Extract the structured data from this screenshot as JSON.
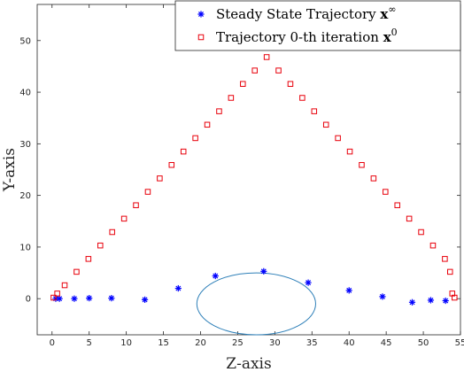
{
  "chart_data": {
    "type": "scatter",
    "xlabel": "Z-axis",
    "ylabel": "Y-axis",
    "xlim": [
      -2,
      55
    ],
    "ylim": [
      -7,
      57
    ],
    "xticks": [
      0,
      5,
      10,
      15,
      20,
      25,
      30,
      35,
      40,
      45,
      50,
      55
    ],
    "yticks": [
      0,
      10,
      20,
      30,
      40,
      50
    ],
    "grid": false,
    "legend_position": "top-right",
    "series": [
      {
        "name": "Steady State Trajectory",
        "name_math": "x",
        "name_sup": "∞",
        "marker": "asterisk",
        "color": "#0000ff",
        "x": [
          0.5,
          1.0,
          3.0,
          5.0,
          8.0,
          12.5,
          17.0,
          22.0,
          28.5,
          34.5,
          40.0,
          44.5,
          48.5,
          51.0,
          53.0
        ],
        "y": [
          0.0,
          0.0,
          0.0,
          0.1,
          0.1,
          -0.2,
          2.0,
          4.4,
          5.3,
          3.1,
          1.6,
          0.4,
          -0.7,
          -0.3,
          -0.4
        ]
      },
      {
        "name": "Trajectory 0-th iteration",
        "name_math": "x",
        "name_sup": "0",
        "marker": "square",
        "color": "#e8000b",
        "x": [
          0.2,
          0.7,
          1.7,
          3.3,
          4.9,
          6.5,
          8.1,
          9.7,
          11.3,
          12.9,
          14.5,
          16.1,
          17.7,
          19.3,
          20.9,
          22.5,
          24.1,
          25.7,
          27.3,
          28.9,
          30.5,
          32.1,
          33.7,
          35.3,
          36.9,
          38.5,
          40.1,
          41.7,
          43.3,
          44.9,
          46.5,
          48.1,
          49.7,
          51.3,
          52.9,
          53.6,
          53.9,
          54.2
        ],
        "y": [
          0.2,
          1.0,
          2.6,
          5.2,
          7.7,
          10.3,
          12.9,
          15.5,
          18.1,
          20.7,
          23.3,
          25.9,
          28.5,
          31.1,
          33.7,
          36.3,
          38.9,
          41.6,
          44.2,
          46.8,
          44.2,
          41.6,
          38.9,
          36.3,
          33.7,
          31.1,
          28.5,
          25.9,
          23.3,
          20.7,
          18.1,
          15.5,
          12.9,
          10.3,
          7.7,
          5.2,
          1.0,
          0.2
        ]
      }
    ],
    "annotations": [
      {
        "type": "ellipse",
        "color": "#2d7fb8",
        "center": [
          27.5,
          -1.0
        ],
        "radius_x": 8.0,
        "radius_y": 6.0
      }
    ]
  }
}
